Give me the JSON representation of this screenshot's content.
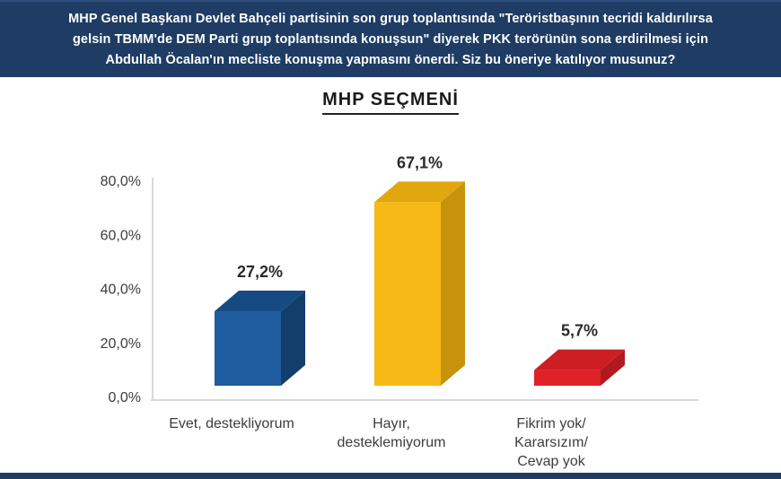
{
  "header": {
    "bg_color": "#1e3c64",
    "lines": [
      "MHP Genel Başkanı Devlet Bahçeli partisinin son grup toplantısında \"Teröristbaşının tecridi kaldırılırsa",
      "gelsin TBMM'de DEM Parti grup toplantısında konuşsun\" diyerek PKK terörünün sona erdirilmesi için",
      "Abdullah Öcalan'ın mecliste konuşma yapmasını önerdi. Siz bu öneriye katılıyor musunuz?"
    ]
  },
  "chart_data": {
    "type": "bar",
    "style": "3d-column",
    "title": "MHP SEÇMENİ",
    "categories": [
      "Evet, destekliyorum",
      "Hayır, desteklemiyorum",
      "Fikrim yok/ Kararsızım/ Cevap yok"
    ],
    "category_lines": [
      [
        "Evet, destekliyorum"
      ],
      [
        "Hayır,",
        "desteklemiyorum"
      ],
      [
        "Fikrim yok/",
        "Kararsızım/",
        "Cevap yok"
      ]
    ],
    "values": [
      27.2,
      67.1,
      5.7
    ],
    "value_labels": [
      "27,2%",
      "67,1%",
      "5,7%"
    ],
    "bar_colors": [
      {
        "front": "#1e5c9f",
        "top": "#164a81",
        "side": "#123e6c"
      },
      {
        "front": "#f7b916",
        "top": "#e2a60f",
        "side": "#c6930b"
      },
      {
        "front": "#e02127",
        "top": "#cd1e24",
        "side": "#b0191e"
      }
    ],
    "ylim": [
      0,
      80
    ],
    "yticks": [
      {
        "value": 0,
        "label": "0,0%"
      },
      {
        "value": 20,
        "label": "20,0%"
      },
      {
        "value": 40,
        "label": "40,0%"
      },
      {
        "value": 60,
        "label": "60,0%"
      },
      {
        "value": 80,
        "label": "80,0%"
      }
    ],
    "xlabel": "",
    "ylabel": "",
    "grid": false,
    "legend": false,
    "axis_color": "#d9d9d9",
    "text_color": "#3d3d3d"
  },
  "footer": {
    "bg_color": "#1e3c64"
  }
}
